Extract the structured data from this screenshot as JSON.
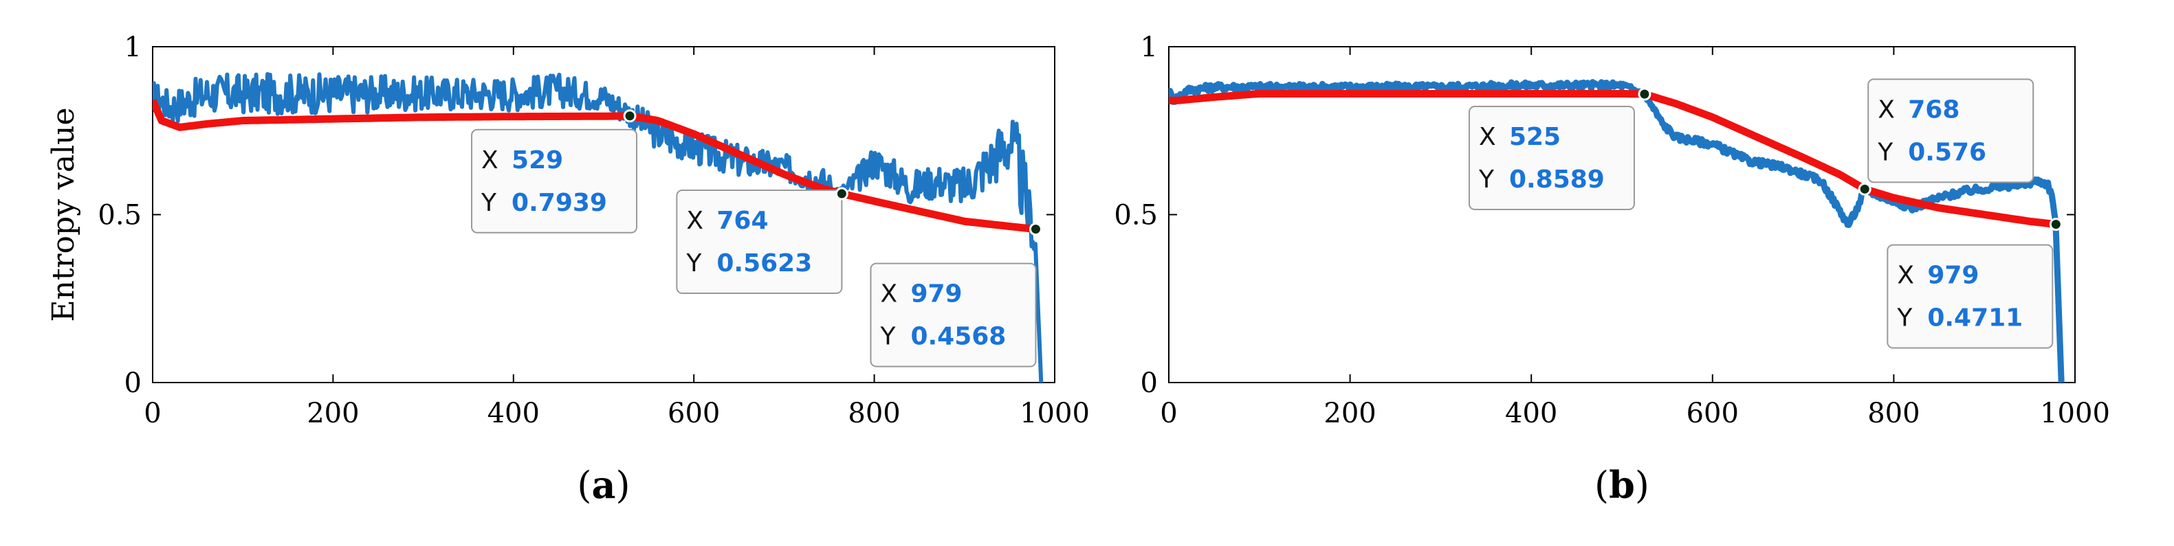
{
  "colors": {
    "raw": "#1f77c4",
    "smooth": "#f0120f",
    "box_border": "#999999"
  },
  "chart_data": [
    {
      "type": "line",
      "panel_label": "(a)",
      "ylabel": "Entropy value",
      "xlim": [
        0,
        1000
      ],
      "ylim": [
        0,
        1
      ],
      "xticks": [
        0,
        200,
        400,
        600,
        800,
        1000
      ],
      "yticks": [
        0,
        0.5,
        1
      ],
      "xtick_labels": [
        "0",
        "200",
        "400",
        "600",
        "800",
        "1000"
      ],
      "ytick_labels": [
        "0",
        "0.5",
        "1"
      ],
      "series": [
        {
          "color": "#1f77c4",
          "style": "noisy",
          "x": [
            0,
            20,
            60,
            120,
            200,
            300,
            400,
            450,
            500,
            529,
            560,
            600,
            650,
            700,
            740,
            764,
            780,
            800,
            820,
            840,
            870,
            900,
            930,
            950,
            960,
            970,
            975,
            979,
            985
          ],
          "y": [
            0.86,
            0.82,
            0.86,
            0.86,
            0.86,
            0.86,
            0.86,
            0.87,
            0.85,
            0.8,
            0.74,
            0.7,
            0.66,
            0.64,
            0.6,
            0.5623,
            0.6,
            0.66,
            0.62,
            0.58,
            0.6,
            0.58,
            0.66,
            0.72,
            0.64,
            0.52,
            0.4568,
            0.4,
            0.0
          ],
          "noise": [
            0.04,
            0.05,
            0.06,
            0.06,
            0.06,
            0.05,
            0.05,
            0.05,
            0.04,
            0.04,
            0.05,
            0.05,
            0.05,
            0.04,
            0.05,
            0.03,
            0.04,
            0.05,
            0.05,
            0.05,
            0.05,
            0.06,
            0.08,
            0.1,
            0.12,
            0.1,
            0.06,
            0.05,
            0.0
          ]
        },
        {
          "color": "#f0120f",
          "style": "smooth",
          "x": [
            0,
            10,
            30,
            60,
            100,
            200,
            300,
            400,
            500,
            529,
            560,
            600,
            650,
            700,
            740,
            764,
            800,
            850,
            900,
            950,
            979
          ],
          "y": [
            0.84,
            0.78,
            0.76,
            0.77,
            0.78,
            0.785,
            0.79,
            0.792,
            0.793,
            0.7939,
            0.78,
            0.74,
            0.68,
            0.62,
            0.58,
            0.5623,
            0.54,
            0.51,
            0.48,
            0.465,
            0.4568
          ]
        }
      ],
      "datatips": [
        {
          "x": 529,
          "y": 0.7939,
          "x_text": "529",
          "y_text": "0.7939"
        },
        {
          "x": 764,
          "y": 0.5623,
          "x_text": "764",
          "y_text": "0.5623"
        },
        {
          "x": 979,
          "y": 0.4568,
          "x_text": "979",
          "y_text": "0.4568"
        }
      ]
    },
    {
      "type": "line",
      "panel_label": "(b)",
      "ylabel": "",
      "xlim": [
        0,
        1000
      ],
      "ylim": [
        0,
        1
      ],
      "xticks": [
        0,
        200,
        400,
        600,
        800,
        1000
      ],
      "yticks": [
        0,
        0.5,
        1
      ],
      "xtick_labels": [
        "0",
        "200",
        "400",
        "600",
        "800",
        "1000"
      ],
      "ytick_labels": [
        "0",
        "0.5",
        "1"
      ],
      "series": [
        {
          "color": "#1f77c4",
          "style": "line",
          "x": [
            0,
            5,
            20,
            50,
            100,
            200,
            300,
            400,
            500,
            525,
            545,
            560,
            600,
            640,
            680,
            720,
            750,
            760,
            768,
            790,
            820,
            850,
            880,
            910,
            940,
            960,
            970,
            975,
            979,
            985
          ],
          "y": [
            0.87,
            0.84,
            0.87,
            0.88,
            0.88,
            0.88,
            0.88,
            0.885,
            0.885,
            0.8589,
            0.77,
            0.73,
            0.71,
            0.66,
            0.64,
            0.6,
            0.47,
            0.52,
            0.576,
            0.55,
            0.52,
            0.55,
            0.57,
            0.58,
            0.59,
            0.6,
            0.59,
            0.55,
            0.4711,
            0.0
          ],
          "noise": [
            0.01,
            0.01,
            0.01,
            0.01,
            0.01,
            0.01,
            0.01,
            0.01,
            0.01,
            0.01,
            0.01,
            0.01,
            0.01,
            0.01,
            0.01,
            0.01,
            0.01,
            0.01,
            0.01,
            0.01,
            0.01,
            0.01,
            0.01,
            0.01,
            0.01,
            0.01,
            0.01,
            0.01,
            0.0,
            0.0
          ]
        },
        {
          "color": "#f0120f",
          "style": "smooth",
          "x": [
            0,
            10,
            50,
            100,
            200,
            300,
            400,
            500,
            525,
            560,
            600,
            650,
            700,
            740,
            768,
            800,
            850,
            900,
            950,
            979
          ],
          "y": [
            0.84,
            0.84,
            0.85,
            0.86,
            0.86,
            0.86,
            0.86,
            0.86,
            0.8589,
            0.83,
            0.79,
            0.73,
            0.67,
            0.62,
            0.576,
            0.55,
            0.52,
            0.5,
            0.48,
            0.4711
          ]
        }
      ],
      "datatips": [
        {
          "x": 525,
          "y": 0.8589,
          "x_text": "525",
          "y_text": "0.8589"
        },
        {
          "x": 768,
          "y": 0.576,
          "x_text": "768",
          "y_text": "0.576"
        },
        {
          "x": 979,
          "y": 0.4711,
          "x_text": "979",
          "y_text": "0.4711"
        }
      ]
    }
  ]
}
